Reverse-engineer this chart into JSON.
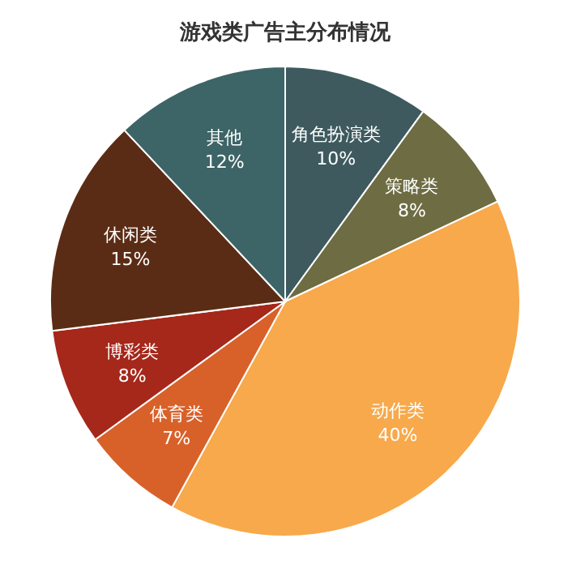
{
  "chart_data": {
    "type": "pie",
    "title": "游戏类广告主分布情况",
    "categories": [
      "角色扮演类",
      "策略类",
      "动作类",
      "体育类",
      "博彩类",
      "休闲类",
      "其他"
    ],
    "values": [
      10,
      8,
      40,
      7,
      8,
      15,
      12
    ],
    "colors": [
      "#3e5a5e",
      "#6e6c42",
      "#f7a94b",
      "#d8612a",
      "#a5281b",
      "#5b2c15",
      "#3d6466"
    ],
    "value_labels": [
      "10%",
      "8%",
      "40%",
      "7%",
      "8%",
      "15%",
      "12%"
    ]
  }
}
